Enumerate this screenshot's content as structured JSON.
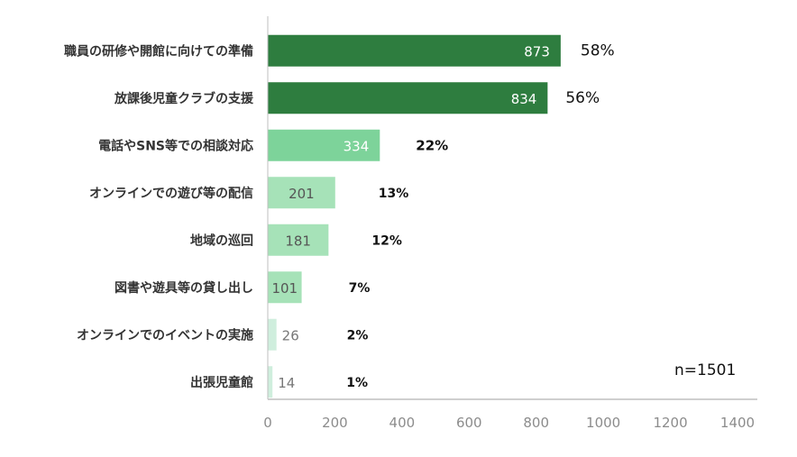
{
  "chart_data": {
    "type": "bar",
    "orientation": "horizontal",
    "categories": [
      "職員の研修や開館に向けての準備",
      "放課後児童クラブの支援",
      "電話やSNS等での相談対応",
      "オンラインでの遊び等の配信",
      "地域の巡回",
      "図書や遊具等の貸し出し",
      "オンラインでのイベントの実施",
      "出張児童館"
    ],
    "values": [
      873,
      834,
      334,
      201,
      181,
      101,
      26,
      14
    ],
    "percent_labels": [
      "58%",
      "56%",
      "22%",
      "13%",
      "12%",
      "7%",
      "2%",
      "1%"
    ],
    "bar_colors": [
      "#2e7d3f",
      "#2e7d3f",
      "#7dd39a",
      "#a6e2b8",
      "#a6e2b8",
      "#a6e2b8",
      "#cfeedd",
      "#cfeedd"
    ],
    "value_label_colors": [
      "#ffffff",
      "#ffffff",
      "#ffffff",
      "#555555",
      "#555555",
      "#555555",
      "#777777",
      "#777777"
    ],
    "xlim": [
      0,
      1400
    ],
    "xticks": [
      "0",
      "200",
      "400",
      "600",
      "800",
      "1000",
      "1200",
      "1400"
    ],
    "xlabel": "",
    "ylabel": "",
    "title": "",
    "grid": false,
    "note": "n=1501"
  }
}
